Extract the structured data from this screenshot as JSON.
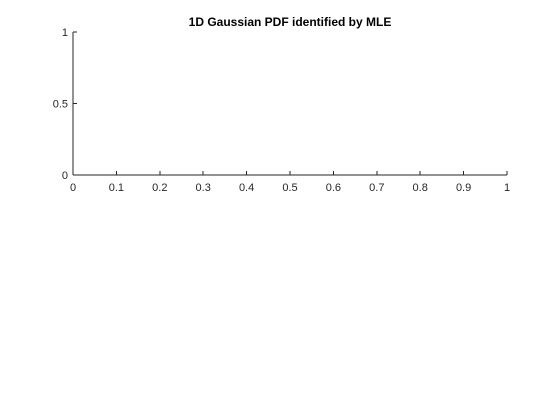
{
  "chart_data": {
    "type": "line",
    "title": "1D Gaussian PDF identified by MLE",
    "xlabel": "",
    "ylabel": "",
    "xlim": [
      0,
      1
    ],
    "ylim": [
      0,
      1
    ],
    "x_ticks": [
      0,
      0.1,
      0.2,
      0.3,
      0.4,
      0.5,
      0.6,
      0.7,
      0.8,
      0.9,
      1
    ],
    "x_tick_labels": [
      "0",
      "0.1",
      "0.2",
      "0.3",
      "0.4",
      "0.5",
      "0.6",
      "0.7",
      "0.8",
      "0.9",
      "1"
    ],
    "y_ticks": [
      0,
      0.5,
      1
    ],
    "y_tick_labels": [
      "0",
      "0.5",
      "1"
    ],
    "grid": false,
    "series": [],
    "colors": {
      "axis": "#262626",
      "title": "#000000",
      "background": "#ffffff"
    }
  }
}
